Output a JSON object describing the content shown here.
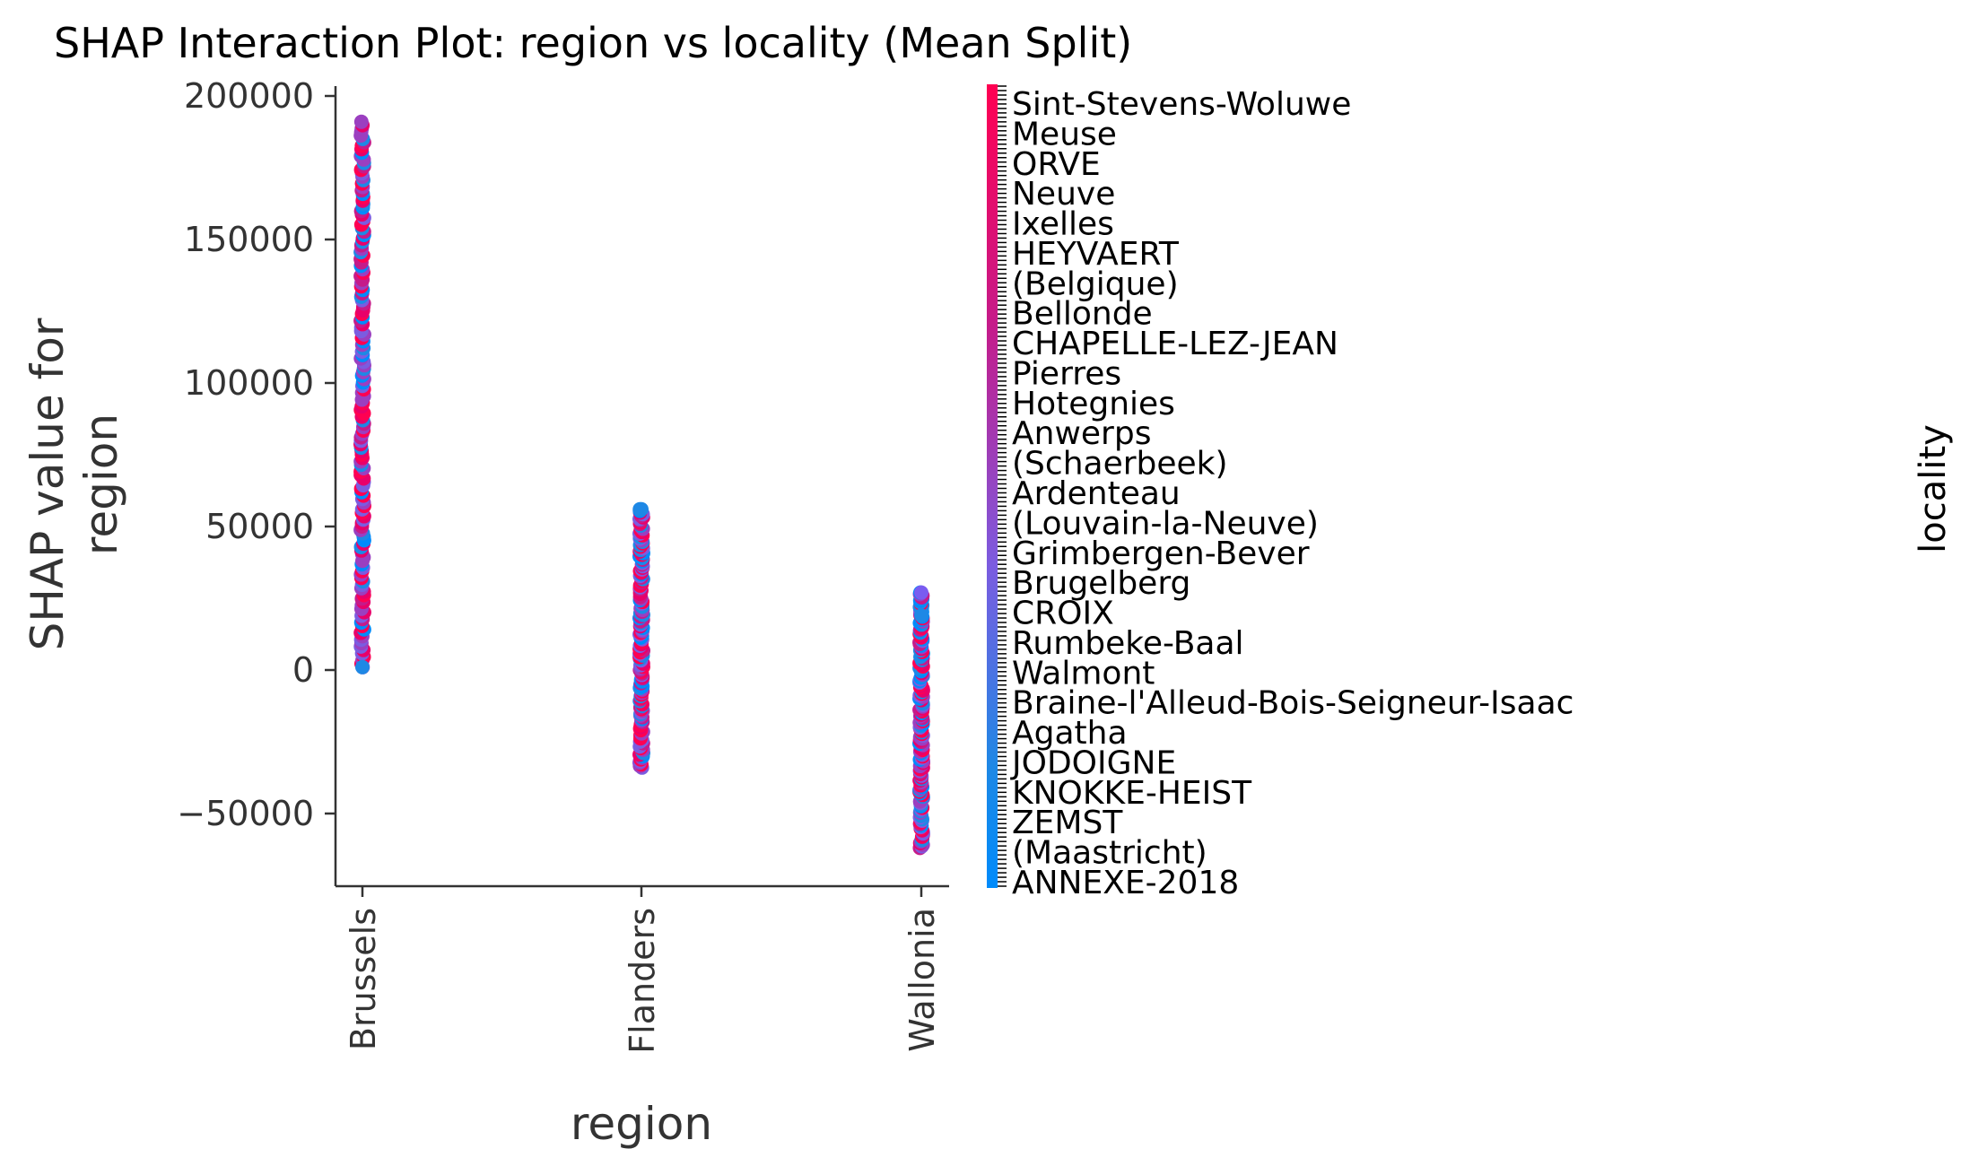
{
  "chart_data": {
    "type": "scatter",
    "title": "SHAP Interaction Plot: region vs locality (Mean Split)",
    "xlabel": "region",
    "ylabel_lines": [
      "SHAP value for",
      "region"
    ],
    "ylim": [
      -76000,
      205000
    ],
    "yticks": [
      200000,
      150000,
      100000,
      50000,
      0,
      -50000
    ],
    "ytick_labels": [
      "200000",
      "150000",
      "100000",
      "50000",
      "0",
      "−50000"
    ],
    "categories": [
      "Brussels",
      "Flanders",
      "Wallonia"
    ],
    "series": [
      {
        "category": "Brussels",
        "y_min": 1000,
        "y_max": 191000
      },
      {
        "category": "Flanders",
        "y_min": -34000,
        "y_max": 56000
      },
      {
        "category": "Wallonia",
        "y_min": -62000,
        "y_max": 27000
      }
    ],
    "outliers": [
      {
        "category": "Wallonia",
        "y": 27000,
        "color": "#7a5cf0"
      },
      {
        "category": "Wallonia",
        "y": 19000,
        "color": "#1e88e5"
      },
      {
        "category": "Brussels",
        "y": 1000,
        "color": "#1e88e5"
      },
      {
        "category": "Flanders",
        "y": 56000,
        "color": "#1e88e5"
      }
    ],
    "colorbar": {
      "label": "locality",
      "colors": [
        "#ff0052",
        "#c51b8a",
        "#7b5ce0",
        "#1e88e5",
        "#008bfb"
      ],
      "visible_tick_labels": [
        "Sint-Stevens-Woluwe",
        "Meuse",
        "ORVE",
        "Neuve",
        "Ixelles",
        "HEYVAERT",
        "(Belgique)",
        "Bellonde",
        "CHAPELLE-LEZ-JEAN",
        "Pierres",
        "Hotegnies",
        "Anwerps",
        "(Schaerbeek)",
        "Ardenteau",
        "(Louvain-la-Neuve)",
        "Grimbergen-Bever",
        "Brugelberg",
        "CROIX",
        "Rumbeke-Baal",
        "Walmont",
        "Braine-l'Alleud-Bois-Seigneur-Isaac",
        "Agatha",
        "JODOIGNE",
        "KNOKKE-HEIST",
        "ZEMST",
        "(Maastricht)",
        "ANNEXE-2018"
      ]
    }
  }
}
